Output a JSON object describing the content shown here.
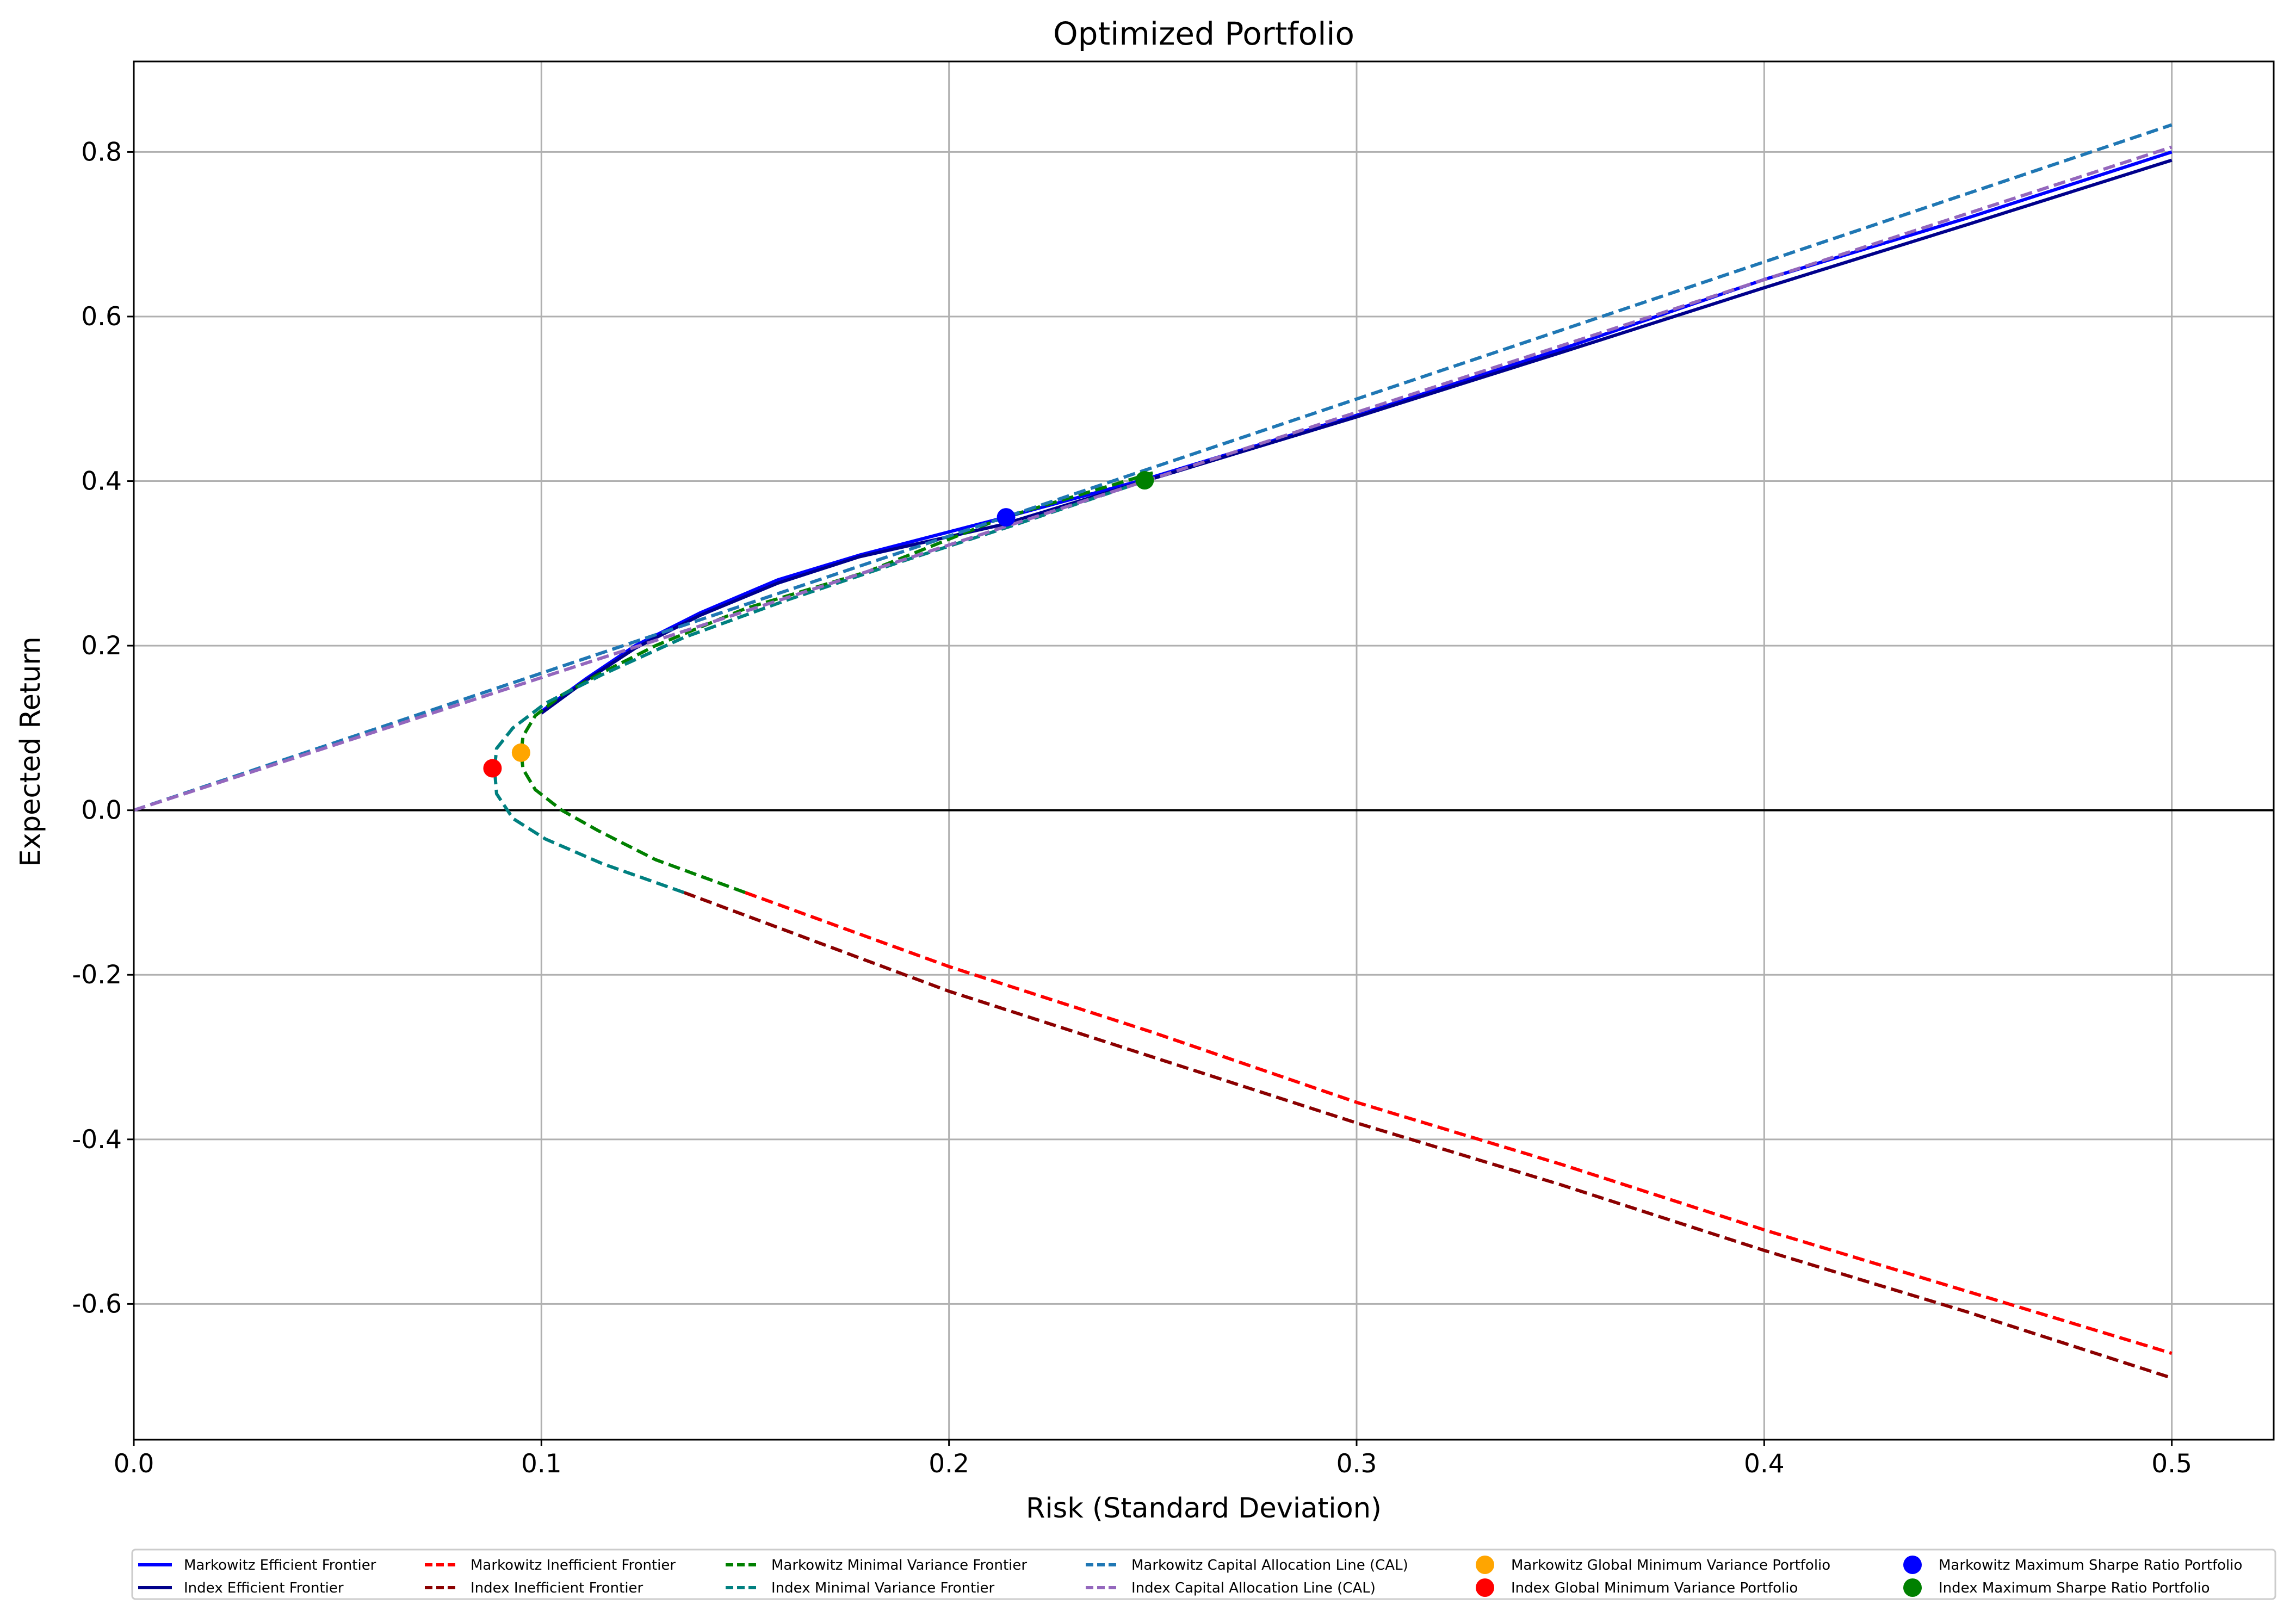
{
  "chart_data": {
    "type": "line",
    "title": "Optimized Portfolio",
    "xlabel": "Risk (Standard Deviation)",
    "ylabel": "Expected Return",
    "xlim": [
      0.0,
      0.525
    ],
    "ylim": [
      -0.765,
      0.91
    ],
    "grid": true,
    "legend_position": "bottom",
    "x_ticks": [
      0.0,
      0.1,
      0.2,
      0.3,
      0.4,
      0.5
    ],
    "x_tick_labels": [
      "0.0",
      "0.1",
      "0.2",
      "0.3",
      "0.4",
      "0.5"
    ],
    "y_ticks": [
      -0.6,
      -0.4,
      -0.2,
      0.0,
      0.2,
      0.4,
      0.6,
      0.8
    ],
    "y_tick_labels": [
      "-0.6",
      "-0.4",
      "-0.2",
      "0.0",
      "0.2",
      "0.4",
      "0.6",
      "0.8"
    ],
    "zero_line": true,
    "series": [
      {
        "name": "Markowitz Efficient Frontier",
        "style": "solid",
        "color": "#0000ff",
        "points": [
          [
            0.1,
            0.12
          ],
          [
            0.111,
            0.16
          ],
          [
            0.123,
            0.2
          ],
          [
            0.139,
            0.24
          ],
          [
            0.158,
            0.28
          ],
          [
            0.178,
            0.31
          ],
          [
            0.213,
            0.355
          ],
          [
            0.248,
            0.402
          ],
          [
            0.3,
            0.48
          ],
          [
            0.35,
            0.56
          ],
          [
            0.4,
            0.645
          ],
          [
            0.45,
            0.72
          ],
          [
            0.5,
            0.8
          ]
        ]
      },
      {
        "name": "Index Efficient Frontier",
        "style": "solid",
        "color": "#00008b",
        "points": [
          [
            0.1,
            0.118
          ],
          [
            0.111,
            0.158
          ],
          [
            0.123,
            0.197
          ],
          [
            0.139,
            0.237
          ],
          [
            0.158,
            0.276
          ],
          [
            0.178,
            0.308
          ],
          [
            0.213,
            0.347
          ],
          [
            0.248,
            0.4
          ],
          [
            0.3,
            0.478
          ],
          [
            0.35,
            0.556
          ],
          [
            0.4,
            0.635
          ],
          [
            0.45,
            0.712
          ],
          [
            0.5,
            0.79
          ]
        ]
      },
      {
        "name": "Markowitz Inefficient Frontier",
        "style": "dashed",
        "color": "#ff0000",
        "points": [
          [
            0.15,
            -0.1
          ],
          [
            0.2,
            -0.19
          ],
          [
            0.25,
            -0.27
          ],
          [
            0.3,
            -0.355
          ],
          [
            0.35,
            -0.43
          ],
          [
            0.4,
            -0.51
          ],
          [
            0.45,
            -0.585
          ],
          [
            0.5,
            -0.66
          ]
        ]
      },
      {
        "name": "Index Inefficient Frontier",
        "style": "dashed",
        "color": "#8b0000",
        "points": [
          [
            0.135,
            -0.1
          ],
          [
            0.2,
            -0.22
          ],
          [
            0.25,
            -0.3
          ],
          [
            0.3,
            -0.38
          ],
          [
            0.35,
            -0.455
          ],
          [
            0.4,
            -0.535
          ],
          [
            0.45,
            -0.61
          ],
          [
            0.5,
            -0.69
          ]
        ]
      },
      {
        "name": "Markowitz Minimal Variance Frontier",
        "style": "dashed",
        "color": "#008000",
        "points": [
          [
            0.15,
            -0.1
          ],
          [
            0.128,
            -0.06
          ],
          [
            0.114,
            -0.025
          ],
          [
            0.105,
            0.0
          ],
          [
            0.0985,
            0.025
          ],
          [
            0.0955,
            0.05
          ],
          [
            0.095,
            0.07
          ],
          [
            0.0955,
            0.09
          ],
          [
            0.0985,
            0.115
          ],
          [
            0.105,
            0.14
          ],
          [
            0.114,
            0.165
          ],
          [
            0.128,
            0.2
          ],
          [
            0.15,
            0.245
          ],
          [
            0.18,
            0.29
          ],
          [
            0.213,
            0.355
          ],
          [
            0.25,
            0.41
          ]
        ]
      },
      {
        "name": "Index Minimal Variance Frontier",
        "style": "dashed",
        "color": "#008080",
        "points": [
          [
            0.135,
            -0.1
          ],
          [
            0.115,
            -0.065
          ],
          [
            0.101,
            -0.035
          ],
          [
            0.093,
            -0.01
          ],
          [
            0.089,
            0.02
          ],
          [
            0.0885,
            0.05
          ],
          [
            0.089,
            0.075
          ],
          [
            0.093,
            0.1
          ],
          [
            0.101,
            0.13
          ],
          [
            0.115,
            0.165
          ],
          [
            0.135,
            0.21
          ],
          [
            0.16,
            0.255
          ],
          [
            0.19,
            0.305
          ],
          [
            0.215,
            0.345
          ],
          [
            0.248,
            0.4
          ]
        ]
      },
      {
        "name": "Markowitz Capital Allocation Line (CAL)",
        "style": "dashed",
        "color": "#1f77b4",
        "points": [
          [
            0.0,
            0.0
          ],
          [
            0.5,
            0.833
          ]
        ]
      },
      {
        "name": "Index Capital Allocation Line (CAL)",
        "style": "dashed",
        "color": "#9467bd",
        "points": [
          [
            0.0,
            0.0
          ],
          [
            0.5,
            0.806
          ]
        ]
      }
    ],
    "points": [
      {
        "name": "Markowitz Global Minimum Variance Portfolio",
        "color": "#ffa500",
        "x": 0.095,
        "y": 0.07
      },
      {
        "name": "Index Global Minimum Variance Portfolio",
        "color": "#ff0000",
        "x": 0.088,
        "y": 0.051
      },
      {
        "name": "Markowitz Maximum Sharpe Ratio Portfolio",
        "color": "#0000ff",
        "x": 0.214,
        "y": 0.356
      },
      {
        "name": "Index Maximum Sharpe Ratio Portfolio",
        "color": "#008000",
        "x": 0.248,
        "y": 0.401
      }
    ],
    "legend": [
      {
        "label": "Markowitz Efficient Frontier",
        "kind": "solid",
        "color": "#0000ff"
      },
      {
        "label": "Index Efficient Frontier",
        "kind": "solid",
        "color": "#00008b"
      },
      {
        "label": "Markowitz Inefficient Frontier",
        "kind": "dashed",
        "color": "#ff0000"
      },
      {
        "label": "Index Inefficient Frontier",
        "kind": "dashed",
        "color": "#8b0000"
      },
      {
        "label": "Markowitz Minimal Variance Frontier",
        "kind": "dashed",
        "color": "#008000"
      },
      {
        "label": "Index Minimal Variance Frontier",
        "kind": "dashed",
        "color": "#008080"
      },
      {
        "label": "Markowitz Capital Allocation Line (CAL)",
        "kind": "dashed",
        "color": "#1f77b4"
      },
      {
        "label": "Index Capital Allocation Line (CAL)",
        "kind": "dashed",
        "color": "#9467bd"
      },
      {
        "label": "Markowitz Global Minimum Variance Portfolio",
        "kind": "marker",
        "color": "#ffa500"
      },
      {
        "label": "Index Global Minimum Variance Portfolio",
        "kind": "marker",
        "color": "#ff0000"
      },
      {
        "label": "Markowitz Maximum Sharpe Ratio Portfolio",
        "kind": "marker",
        "color": "#0000ff"
      },
      {
        "label": "Index Maximum Sharpe Ratio Portfolio",
        "kind": "marker",
        "color": "#008000"
      }
    ]
  }
}
